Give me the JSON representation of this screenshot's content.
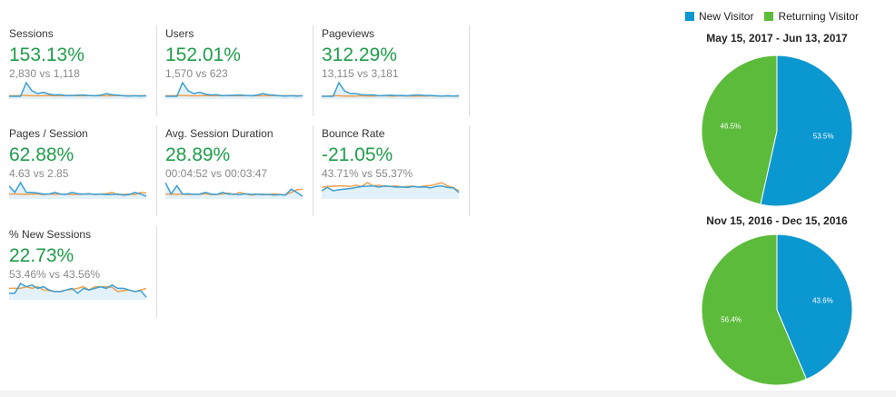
{
  "colors": {
    "accent_green": "#1e9e4a",
    "new_visitor": "#0b97d0",
    "returning_visitor": "#5cbb3b",
    "previous": "#f0a04b",
    "current": "#3aa0d4"
  },
  "metrics": [
    {
      "label": "Sessions",
      "change": "153.13%",
      "compare": "2,830 vs 1,118",
      "cur": [
        1,
        1,
        1,
        6,
        3,
        2,
        2.5,
        1.8,
        1.5,
        1.6,
        1.2,
        1.3,
        1.4,
        1.5,
        1.3,
        1.2,
        1.4,
        2,
        1.6,
        1.4,
        1.2,
        1.1,
        1.2,
        1.1,
        1.2
      ],
      "prev": [
        1.2,
        1.2,
        1.3,
        1.3,
        1.2,
        1.2,
        1.2,
        1.3,
        1.2,
        1.2,
        1.3,
        1.3,
        1.2,
        1.2,
        1.3,
        1.2,
        1.2,
        1.2,
        1.2,
        1.3,
        1.2,
        1.2,
        1.2,
        1.2,
        1.2
      ]
    },
    {
      "label": "Users",
      "change": "152.01%",
      "compare": "1,570 vs 623",
      "cur": [
        1,
        1,
        1,
        6,
        3,
        2,
        2.5,
        1.8,
        1.5,
        1.6,
        1.2,
        1.3,
        1.4,
        1.5,
        1.3,
        1.2,
        1.4,
        2,
        1.6,
        1.4,
        1.2,
        1.1,
        1.2,
        1.1,
        1.2
      ],
      "prev": [
        1.2,
        1.2,
        1.3,
        1.3,
        1.2,
        1.2,
        1.2,
        1.3,
        1.2,
        1.2,
        1.3,
        1.3,
        1.2,
        1.2,
        1.3,
        1.2,
        1.2,
        1.2,
        1.2,
        1.3,
        1.2,
        1.2,
        1.2,
        1.2,
        1.2
      ]
    },
    {
      "label": "Pageviews",
      "change": "312.29%",
      "compare": "13,115 vs 3,181",
      "cur": [
        1,
        1,
        1,
        6,
        3,
        2,
        2,
        1.6,
        1.5,
        1.5,
        1.2,
        1.3,
        1.4,
        1.3,
        1.3,
        1.2,
        1.4,
        1.5,
        1.3,
        1.3,
        1.2,
        1.1,
        1.2,
        1.1,
        1.2
      ],
      "prev": [
        1.1,
        1.1,
        1.2,
        1.2,
        1.1,
        1.1,
        1.1,
        1.2,
        1.1,
        1.1,
        1.2,
        1.2,
        1.1,
        1.1,
        1.2,
        1.1,
        1.1,
        1.1,
        1.1,
        1.2,
        1.1,
        1.1,
        1.1,
        1.1,
        1.1
      ]
    },
    {
      "label": "Pages / Session",
      "change": "62.88%",
      "compare": "4.63 vs 2.85",
      "cur": [
        4,
        2,
        5,
        2,
        2,
        1.8,
        1.5,
        1.5,
        2,
        1.5,
        1.4,
        2,
        1.6,
        1.5,
        1.6,
        1.4,
        1.5,
        1.3,
        1.4,
        1.5,
        1.2,
        1.3,
        2,
        1.5,
        0.8
      ],
      "prev": [
        1.5,
        1.5,
        1.5,
        1.4,
        1.5,
        1.5,
        1.3,
        1.5,
        1.4,
        1.5,
        1.5,
        1.3,
        1.4,
        1.5,
        1.5,
        1.4,
        1.5,
        1.6,
        2,
        1.3,
        1.4,
        1.5,
        1.3,
        2,
        1.8
      ]
    },
    {
      "label": "Avg. Session Duration",
      "change": "28.89%",
      "compare": "00:04:52 vs 00:03:47",
      "cur": [
        5,
        1.5,
        4,
        1.5,
        1.6,
        1.4,
        1.5,
        2,
        1.5,
        1.4,
        2,
        1.5,
        1.5,
        1.3,
        1.6,
        1.4,
        1.5,
        1.3,
        1.4,
        1.2,
        1.3,
        1.2,
        3,
        2,
        0.8
      ],
      "prev": [
        1.5,
        1.5,
        1.4,
        1.5,
        1.3,
        1.5,
        1.4,
        1.6,
        1.3,
        1.4,
        1.5,
        1.8,
        1.3,
        2,
        1.5,
        1.2,
        1.4,
        1.5,
        1.3,
        1.6,
        1.4,
        1.3,
        2,
        2.8,
        3
      ]
    },
    {
      "label": "Bounce Rate",
      "change": "-21.05%",
      "compare": "43.71% vs 55.37%",
      "cur": [
        2.5,
        3.5,
        2.5,
        2.8,
        3,
        3.2,
        3.5,
        3.8,
        3.9,
        4,
        3.6,
        4,
        3.8,
        3.6,
        3.7,
        3.5,
        3.8,
        3.6,
        3.7,
        3.4,
        3.8,
        4,
        3.5,
        3.4,
        2
      ],
      "prev": [
        3.5,
        3.8,
        3.9,
        4,
        4,
        3.8,
        4.2,
        3.8,
        5,
        4,
        4.2,
        3.8,
        3.8,
        4,
        3.6,
        3.8,
        3.9,
        3.6,
        4,
        4.1,
        4.5,
        5,
        4,
        3.5,
        2.5
      ]
    },
    {
      "label": "% New Sessions",
      "change": "22.73%",
      "compare": "53.46% vs 43.56%",
      "cur": [
        2,
        2,
        5,
        4,
        4.5,
        3.5,
        4,
        3,
        2.5,
        2.5,
        3,
        3.5,
        2,
        3.5,
        3,
        3.5,
        4,
        3.5,
        4.5,
        3.5,
        3.5,
        3,
        2.5,
        2.8,
        0.8
      ],
      "prev": [
        3.5,
        3.5,
        3.5,
        4,
        3.5,
        4,
        3,
        2.8,
        2.5,
        2.6,
        3,
        3.2,
        3.5,
        4,
        3,
        4,
        4,
        4,
        3.8,
        2.5,
        2.8,
        3,
        2.5,
        3,
        3.5
      ]
    }
  ],
  "chart_data": {
    "type": "pie",
    "legend": {
      "position": "top",
      "entries": [
        "New Visitor",
        "Returning Visitor"
      ]
    },
    "pies": [
      {
        "title": "May 15, 2017 - Jun 13, 2017",
        "slices": [
          {
            "label": "New Visitor",
            "value": 53.5,
            "text": "53.5%"
          },
          {
            "label": "Returning Visitor",
            "value": 46.5,
            "text": "46.5%"
          }
        ]
      },
      {
        "title": "Nov 15, 2016 - Dec 15, 2016",
        "slices": [
          {
            "label": "New Visitor",
            "value": 43.6,
            "text": "43.6%"
          },
          {
            "label": "Returning Visitor",
            "value": 56.4,
            "text": "56.4%"
          }
        ]
      }
    ]
  }
}
